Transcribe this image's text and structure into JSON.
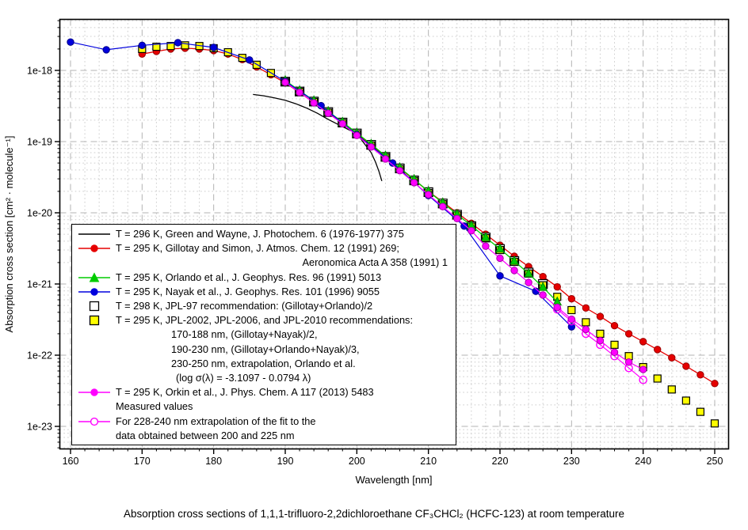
{
  "caption": {
    "text": "Absorption cross sections of 1,1,1-trifluoro-2,2dichloroethane CF₃CHCl₂ (HCFC-123) at room temperature"
  },
  "chart_data": {
    "type": "line",
    "title": "",
    "xlabel": "Wavelength [nm]",
    "ylabel": "Absorption cross section [cm² · molecule⁻¹]",
    "x_scale": "linear",
    "y_scale": "log",
    "x_range_nm": [
      158.4,
      251.9
    ],
    "y_range": [
      4.8e-24,
      5.2e-18
    ],
    "grid": "major dashed + logarithmic minor dotted",
    "legend_position": "inside lower-left",
    "x_ticks": [
      160,
      170,
      180,
      190,
      200,
      210,
      220,
      230,
      240,
      250
    ],
    "y_ticks": [
      {
        "label": "1e-18",
        "value": 1e-18
      },
      {
        "label": "1e-19",
        "value": 1e-19
      },
      {
        "label": "1e-20",
        "value": 1e-20
      },
      {
        "label": "1e-21",
        "value": 1e-21
      },
      {
        "label": "1e-22",
        "value": 1e-22
      },
      {
        "label": "1e-23",
        "value": 1e-23
      }
    ],
    "colors": {
      "grid_major": "#b3b3b3",
      "grid_minor": "#cccccc",
      "frame": "#000000",
      "background": "#ffffff",
      "green_wayne": "#000000",
      "gillotay": "#e60000",
      "orlando": "#00cc00",
      "nayak": "#0000dd",
      "jpl97_fill": "#ffffff",
      "jpl2010_fill": "#ffff00",
      "orkin": "#ff00ff"
    },
    "series": [
      {
        "id": "green-wayne-1976",
        "label": "T = 296 K, Green and Wayne, J. Photochem. 6 (1976-1977) 375",
        "color": "#000000",
        "marker": "none",
        "line": true,
        "lw": 1.3,
        "x": [
          185.5,
          187,
          188.5,
          190,
          191.5,
          193,
          194.5,
          196,
          197.5,
          199,
          200,
          201,
          202,
          202.6,
          203.1,
          203.5
        ],
        "y": [
          4.6e-19,
          4.4e-19,
          4.1e-19,
          3.8e-19,
          3.4e-19,
          2.95e-19,
          2.5e-19,
          2.05e-19,
          1.72e-19,
          1.45e-19,
          1.3e-19,
          9.5e-20,
          7e-20,
          5.2e-20,
          3.8e-20,
          2.8e-20
        ]
      },
      {
        "id": "gillotay-simon-1991",
        "label": "T = 295 K, Gillotay and Simon, J. Atmos. Chem. 12 (1991) 269; Aeronomica Acta A 358 (1991) 1",
        "color": "#e60000",
        "fill": "#e60000",
        "mstroke": "#990000",
        "marker": "circle",
        "msize": 4.2,
        "line": true,
        "lw": 1.3,
        "x": [
          170,
          172,
          174,
          176,
          178,
          180,
          182,
          184,
          186,
          188,
          190,
          192,
          194,
          196,
          198,
          200,
          202,
          204,
          206,
          208,
          210,
          212,
          214,
          216,
          218,
          220,
          222,
          224,
          226,
          228,
          230,
          232,
          234,
          236,
          238,
          240,
          242,
          244,
          246,
          248,
          250
        ],
        "y": [
          1.7e-18,
          1.85e-18,
          2e-18,
          2.05e-18,
          2e-18,
          1.9e-18,
          1.7e-18,
          1.42e-18,
          1.12e-18,
          8.7e-19,
          6.7e-19,
          4.9e-19,
          3.55e-19,
          2.5e-19,
          1.8e-19,
          1.28e-19,
          8.9e-20,
          6.1e-20,
          4.2e-20,
          2.9e-20,
          2e-20,
          1.42e-20,
          1e-20,
          7.1e-21,
          5e-21,
          3.5e-21,
          2.45e-21,
          1.75e-21,
          1.27e-21,
          9.1e-22,
          6.2e-22,
          4.6e-22,
          3.5e-22,
          2.6e-22,
          2e-22,
          1.55e-22,
          1.2e-22,
          9.2e-23,
          7e-23,
          5.3e-23,
          4e-23
        ]
      },
      {
        "id": "jpl-97",
        "label": "T = 298 K, JPL-97 recommendation: (Gillotay+Orlando)/2",
        "color": "#000000",
        "fill": "#ffffff",
        "mstroke": "#000000",
        "marker": "square",
        "msize": 5.5,
        "line": false,
        "x": [
          190,
          192,
          194,
          196,
          198,
          200,
          202,
          204,
          206,
          208,
          210,
          212,
          214,
          216,
          218,
          220,
          222,
          224,
          226
        ],
        "y": [
          6.95e-19,
          5.05e-19,
          3.65e-19,
          2.6e-19,
          1.85e-19,
          1.3e-19,
          9e-20,
          6.1e-20,
          4.2e-20,
          2.85e-20,
          1.95e-20,
          1.35e-20,
          9.4e-21,
          6.5e-21,
          4.5e-21,
          3.1e-21,
          2.1e-21,
          1.45e-21,
          1e-21
        ]
      },
      {
        "id": "jpl-2002-2006-2010",
        "label": "T = 295 K, JPL-2002, JPL-2006, and JPL-2010 recommendations: 170-188 nm (Gillotay+Nayak)/2; 190-230 nm (Gillotay+Orlando+Nayak)/3; 230-250 nm extrapolation log sigma = -3.1097 - 0.0794 lambda",
        "color": "#000000",
        "fill": "#ffff00",
        "mstroke": "#000000",
        "marker": "square",
        "msize": 4.5,
        "line": false,
        "x": [
          170,
          172,
          174,
          176,
          178,
          180,
          182,
          184,
          186,
          188,
          190,
          192,
          194,
          196,
          198,
          200,
          202,
          204,
          206,
          208,
          210,
          212,
          214,
          216,
          218,
          220,
          222,
          224,
          226,
          228,
          230,
          232,
          234,
          236,
          238,
          240,
          242,
          244,
          246,
          248,
          250
        ],
        "y": [
          2e-18,
          2.15e-18,
          2.2e-18,
          2.25e-18,
          2.2e-18,
          2.05e-18,
          1.8e-18,
          1.5e-18,
          1.2e-18,
          9.2e-19,
          6.9e-19,
          5e-19,
          3.6e-19,
          2.55e-19,
          1.82e-19,
          1.27e-19,
          8.8e-20,
          6e-20,
          4.1e-20,
          2.8e-20,
          1.9e-20,
          1.32e-20,
          9.2e-21,
          6.4e-21,
          4.4e-21,
          3e-21,
          2.05e-21,
          1.4e-21,
          9.6e-22,
          6.6e-22,
          4.3e-22,
          2.9e-22,
          2e-22,
          1.4e-22,
          9.7e-23,
          6.8e-23,
          4.7e-23,
          3.3e-23,
          2.3e-23,
          1.6e-23,
          1.1e-23
        ]
      },
      {
        "id": "orlando-1991",
        "label": "T = 295 K, Orlando et al., J. Geophys. Res. 96 (1991) 5013",
        "color": "#00cc00",
        "fill": "#00cc00",
        "mstroke": "#008800",
        "marker": "triangle",
        "msize": 5,
        "line": true,
        "lw": 1.3,
        "x": [
          190,
          192,
          194,
          196,
          198,
          200,
          202,
          204,
          206,
          208,
          210,
          212,
          214,
          216,
          218,
          220,
          222,
          224,
          226,
          228
        ],
        "y": [
          7.2e-19,
          5.2e-19,
          3.75e-19,
          2.65e-19,
          1.88e-19,
          1.32e-19,
          9.2e-20,
          6.3e-20,
          4.3e-20,
          2.95e-20,
          2e-20,
          1.38e-20,
          9.5e-21,
          6.6e-21,
          4.5e-21,
          3.1e-21,
          2.1e-21,
          1.4e-21,
          9e-22,
          5.6e-22
        ]
      },
      {
        "id": "nayak-1996",
        "label": "T = 295 K, Nayak et al., J. Geophys. Res. 101 (1996) 9055",
        "color": "#0000dd",
        "fill": "#0000dd",
        "mstroke": "#000088",
        "marker": "circle",
        "msize": 4.2,
        "line": true,
        "lw": 1.2,
        "x": [
          160,
          165,
          170,
          175,
          180,
          185,
          190,
          195,
          200,
          205,
          210,
          215,
          220,
          225,
          230
        ],
        "y": [
          2.5e-18,
          1.95e-18,
          2.25e-18,
          2.45e-18,
          2.1e-18,
          1.4e-18,
          7e-19,
          3.2e-19,
          1.25e-19,
          5e-20,
          1.75e-20,
          6.5e-21,
          1.3e-21,
          7.9e-22,
          2.5e-22
        ]
      },
      {
        "id": "orkin-2013-extrapolation",
        "label": "For 228-240 nm extrapolation of the fit to the data obtained between 200 and 225 nm",
        "color": "#ff00ff",
        "fill": "#ff00ff",
        "mstroke": "#ff00ff",
        "marker": "circle-open",
        "msize": 4.6,
        "line": true,
        "lw": 1.2,
        "x": [
          228,
          230,
          232,
          234,
          236,
          238,
          240
        ],
        "y": [
          4.4e-22,
          3e-22,
          2e-22,
          1.4e-22,
          9.7e-23,
          6.6e-23,
          4.5e-23
        ]
      },
      {
        "id": "orkin-2013-measured",
        "label": "T = 295 K, Orkin et al., J. Phys. Chem. A 117 (2013) 5483 Measured values",
        "color": "#ff00ff",
        "fill": "#ff00ff",
        "mstroke": "#aa00aa",
        "marker": "circle",
        "msize": 4.2,
        "line": true,
        "lw": 1.2,
        "x": [
          190,
          192,
          194,
          196,
          198,
          200,
          202,
          204,
          206,
          208,
          210,
          212,
          214,
          216,
          218,
          220,
          222,
          224,
          226,
          228,
          230,
          232,
          234,
          236,
          238,
          240
        ],
        "y": [
          6.8e-19,
          4.9e-19,
          3.5e-19,
          2.5e-19,
          1.78e-19,
          1.22e-19,
          8.4e-20,
          5.7e-20,
          3.9e-20,
          2.65e-20,
          1.8e-20,
          1.22e-20,
          8.3e-21,
          5.6e-21,
          3.4e-21,
          2.3e-21,
          1.55e-21,
          1.05e-21,
          7e-22,
          4.7e-22,
          3.2e-22,
          2.3e-22,
          1.6e-22,
          1.1e-22,
          8e-23,
          6.3e-23
        ]
      }
    ]
  },
  "legend": {
    "entries": [
      {
        "marker": {
          "type": "line",
          "color": "#000000",
          "fill": "none"
        },
        "lines": [
          {
            "text": "T = 296 K, Green and Wayne, J. Photochem. 6 (1976-1977) 375",
            "style": "normal"
          }
        ]
      },
      {
        "marker": {
          "type": "line-circle",
          "color": "#e60000",
          "fill": "#e60000"
        },
        "lines": [
          {
            "text": "T = 295 K, Gillotay and Simon, J. Atmos. Chem. 12 (1991) 269;",
            "style": "normal"
          },
          {
            "text": "Aeronomica Acta A 358 (1991) 1",
            "style": "right"
          }
        ]
      },
      {
        "marker": {
          "type": "line-triangle",
          "color": "#00cc00",
          "fill": "#00cc00"
        },
        "lines": [
          {
            "text": "T = 295 K, Orlando et al., J. Geophys. Res. 96 (1991) 5013",
            "style": "normal"
          }
        ]
      },
      {
        "marker": {
          "type": "line-circle",
          "color": "#0000dd",
          "fill": "#0000dd"
        },
        "lines": [
          {
            "text": "T = 295 K, Nayak et al., J. Geophys. Res. 101 (1996) 9055",
            "style": "normal"
          }
        ]
      },
      {
        "marker": {
          "type": "square",
          "color": "#000000",
          "fill": "#ffffff"
        },
        "lines": [
          {
            "text": "T = 298 K, JPL-97 recommendation: (Gillotay+Orlando)/2",
            "style": "normal"
          }
        ]
      },
      {
        "marker": {
          "type": "square",
          "color": "#000000",
          "fill": "#ffff00"
        },
        "lines": [
          {
            "text": "T = 295 K, JPL-2002, JPL-2006, and JPL-2010 recommendations:",
            "style": "normal"
          },
          {
            "text": "170-188 nm, (Gillotay+Nayak)/2,",
            "style": "indent"
          },
          {
            "text": "190-230 nm, (Gillotay+Orlando+Nayak)/3,",
            "style": "indent"
          },
          {
            "text": "230-250 nm, extrapolation, Orlando et al.",
            "style": "indent"
          },
          {
            "text": "(log σ(λ) = -3.1097 - 0.0794 λ)",
            "style": "indent2"
          }
        ]
      },
      {
        "marker": {
          "type": "line-circle",
          "color": "#ff00ff",
          "fill": "#ff00ff"
        },
        "lines": [
          {
            "text": "T = 295 K, Orkin et al., J. Phys. Chem. A 117 (2013) 5483",
            "style": "normal"
          },
          {
            "text": "Measured values",
            "style": "normal"
          }
        ]
      },
      {
        "marker": {
          "type": "line-circle-open",
          "color": "#ff00ff",
          "fill": "#ffffff"
        },
        "lines": [
          {
            "text": "For 228-240 nm extrapolation of the fit to the",
            "style": "normal"
          },
          {
            "text": "data obtained between 200 and 225 nm",
            "style": "normal"
          }
        ]
      }
    ]
  }
}
